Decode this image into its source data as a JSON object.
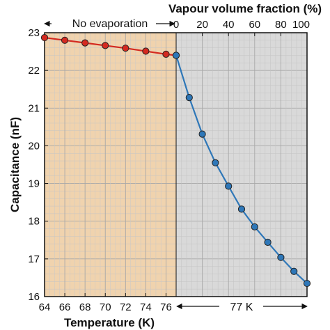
{
  "colors": {
    "left_region": "#f0d3ae",
    "right_region": "#d9d9d9",
    "red_series": "#d42a20",
    "blue_series": "#2e77b8",
    "axis": "#111111"
  },
  "chart_data": {
    "type": "line",
    "xlabel_bottom": "Temperature (K)",
    "xlabel_top": "Vapour volume fraction (%)",
    "ylabel": "Capacitance (nF)",
    "ylim": [
      16,
      23
    ],
    "yticks": [
      "16",
      "17",
      "18",
      "19",
      "20",
      "21",
      "22",
      "23"
    ],
    "x_bottom_ticks": [
      "64",
      "66",
      "68",
      "70",
      "72",
      "74",
      "76"
    ],
    "x_top_ticks": [
      "0",
      "20",
      "40",
      "60",
      "80",
      "100"
    ],
    "annotations": {
      "no_evaporation": "No evaporation",
      "constant_temperature": "77 K"
    },
    "grid": true,
    "series": [
      {
        "axis": "temperature",
        "x": [
          64,
          66,
          68,
          70,
          72,
          74,
          76,
          77
        ],
        "values": [
          22.87,
          22.8,
          22.73,
          22.66,
          22.59,
          22.51,
          22.43,
          22.4
        ]
      },
      {
        "axis": "vapour_fraction",
        "x": [
          0,
          10,
          20,
          30,
          40,
          50,
          60,
          70,
          80,
          90,
          100
        ],
        "values": [
          22.4,
          21.28,
          20.31,
          19.55,
          18.93,
          18.32,
          17.85,
          17.44,
          17.04,
          16.67,
          16.35
        ]
      }
    ]
  }
}
